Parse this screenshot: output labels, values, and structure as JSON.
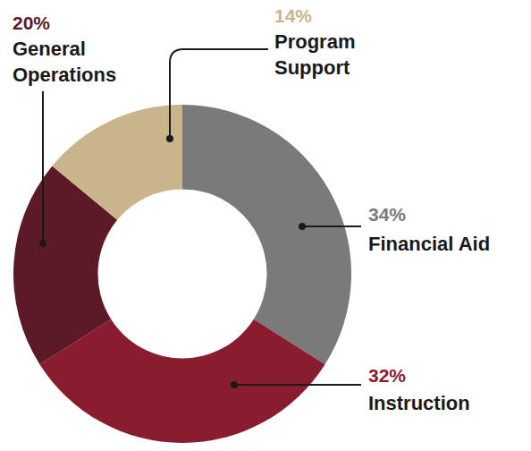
{
  "chart_data": {
    "type": "pie",
    "categories": [
      "Financial Aid",
      "Instruction",
      "General Operations",
      "Program Support"
    ],
    "values": [
      34,
      32,
      20,
      14
    ],
    "value_labels": [
      "34%",
      "32%",
      "20%",
      "14%"
    ],
    "colors": [
      "#7a7a7a",
      "#8a1c30",
      "#5c1a27",
      "#c8b58c"
    ],
    "data_labels": true
  }
}
